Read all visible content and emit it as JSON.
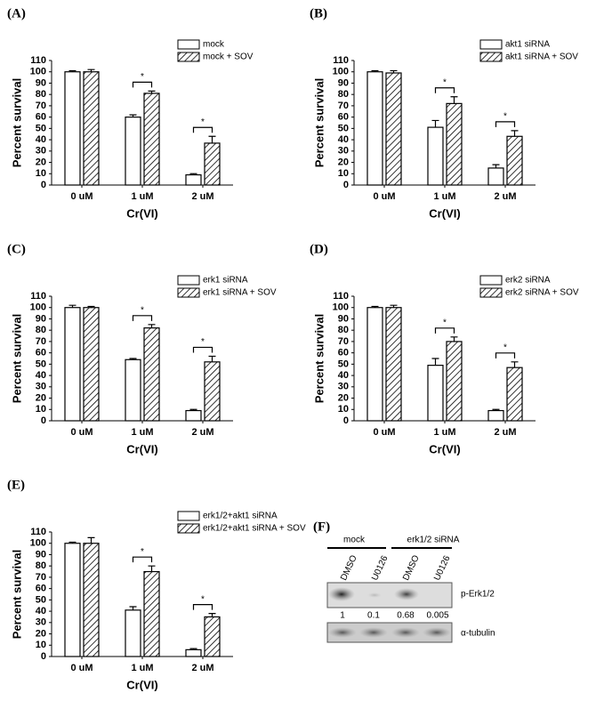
{
  "chart_data": [
    {
      "type": "bar",
      "label": "(A)",
      "xlabel": "Cr(VI)",
      "ylabel": "Percent survival",
      "categories": [
        "0 uM",
        "1 uM",
        "2 uM"
      ],
      "series": [
        {
          "name": "mock",
          "color": "#ffffff",
          "hatch": false,
          "values": [
            100,
            60,
            9
          ],
          "errors": [
            1,
            2,
            1
          ]
        },
        {
          "name": "mock + SOV",
          "color": "#ffffff",
          "hatch": true,
          "values": [
            100,
            81,
            37
          ],
          "errors": [
            2,
            2,
            6
          ]
        }
      ],
      "ylim": [
        0,
        110
      ],
      "yticks": [
        0,
        10,
        20,
        30,
        40,
        50,
        60,
        70,
        80,
        90,
        100,
        110
      ],
      "annotations": [
        {
          "text": "*",
          "at": "1 uM"
        },
        {
          "text": "*",
          "at": "2 uM"
        }
      ],
      "legend": "upper right"
    },
    {
      "type": "bar",
      "label": "(B)",
      "xlabel": "Cr(VI)",
      "ylabel": "Percent survival",
      "categories": [
        "0 uM",
        "1 uM",
        "2 uM"
      ],
      "series": [
        {
          "name": "akt1 siRNA",
          "color": "#ffffff",
          "hatch": false,
          "values": [
            100,
            51,
            15
          ],
          "errors": [
            1,
            6,
            3
          ]
        },
        {
          "name": "akt1 siRNA + SOV",
          "color": "#ffffff",
          "hatch": true,
          "values": [
            99,
            72,
            43
          ],
          "errors": [
            2,
            6,
            5
          ]
        }
      ],
      "ylim": [
        0,
        110
      ],
      "yticks": [
        0,
        10,
        20,
        30,
        40,
        50,
        60,
        70,
        80,
        90,
        100,
        110
      ],
      "annotations": [
        {
          "text": "*",
          "at": "1 uM"
        },
        {
          "text": "*",
          "at": "2 uM"
        }
      ],
      "legend": "upper right"
    },
    {
      "type": "bar",
      "label": "(C)",
      "xlabel": "Cr(VI)",
      "ylabel": "Percent survival",
      "categories": [
        "0 uM",
        "1 uM",
        "2 uM"
      ],
      "series": [
        {
          "name": "erk1 siRNA",
          "color": "#ffffff",
          "hatch": false,
          "values": [
            100,
            54,
            9
          ],
          "errors": [
            2,
            1,
            1
          ]
        },
        {
          "name": "erk1 siRNA + SOV",
          "color": "#ffffff",
          "hatch": true,
          "values": [
            100,
            82,
            52
          ],
          "errors": [
            1,
            3,
            5
          ]
        }
      ],
      "ylim": [
        0,
        110
      ],
      "yticks": [
        0,
        10,
        20,
        30,
        40,
        50,
        60,
        70,
        80,
        90,
        100,
        110
      ],
      "annotations": [
        {
          "text": "*",
          "at": "1 uM"
        },
        {
          "text": "*",
          "at": "2 uM"
        }
      ],
      "legend": "upper right"
    },
    {
      "type": "bar",
      "label": "(D)",
      "xlabel": "Cr(VI)",
      "ylabel": "Percent survival",
      "categories": [
        "0 uM",
        "1 uM",
        "2 uM"
      ],
      "series": [
        {
          "name": "erk2 siRNA",
          "color": "#ffffff",
          "hatch": false,
          "values": [
            100,
            49,
            9
          ],
          "errors": [
            1,
            6,
            1
          ]
        },
        {
          "name": "erk2 siRNA + SOV",
          "color": "#ffffff",
          "hatch": true,
          "values": [
            100,
            70,
            47
          ],
          "errors": [
            2,
            4,
            5
          ]
        }
      ],
      "ylim": [
        0,
        110
      ],
      "yticks": [
        0,
        10,
        20,
        30,
        40,
        50,
        60,
        70,
        80,
        90,
        100,
        110
      ],
      "annotations": [
        {
          "text": "*",
          "at": "1 uM"
        },
        {
          "text": "*",
          "at": "2 uM"
        }
      ],
      "legend": "upper right"
    },
    {
      "type": "bar",
      "label": "(E)",
      "xlabel": "Cr(VI)",
      "ylabel": "Percent survival",
      "categories": [
        "0 uM",
        "1 uM",
        "2 uM"
      ],
      "series": [
        {
          "name": "erk1/2+akt1 siRNA",
          "color": "#ffffff",
          "hatch": false,
          "values": [
            100,
            41,
            6
          ],
          "errors": [
            1,
            3,
            1
          ]
        },
        {
          "name": "erk1/2+akt1 siRNA + SOV",
          "color": "#ffffff",
          "hatch": true,
          "values": [
            100,
            75,
            35
          ],
          "errors": [
            5,
            5,
            3
          ]
        }
      ],
      "ylim": [
        0,
        110
      ],
      "yticks": [
        0,
        10,
        20,
        30,
        40,
        50,
        60,
        70,
        80,
        90,
        100,
        110
      ],
      "annotations": [
        {
          "text": "*",
          "at": "1 uM"
        },
        {
          "text": "*",
          "at": "2 uM"
        }
      ],
      "legend": "upper right"
    }
  ],
  "blot": {
    "label": "(F)",
    "groups": [
      "mock",
      "erk1/2 siRNA"
    ],
    "lanes": [
      "DMSO",
      "U0126",
      "DMSO",
      "U0126"
    ],
    "bands": [
      "p-Erk1/2",
      "α-tubulin"
    ],
    "quantification": [
      1,
      0.1,
      0.68,
      0.005
    ]
  }
}
